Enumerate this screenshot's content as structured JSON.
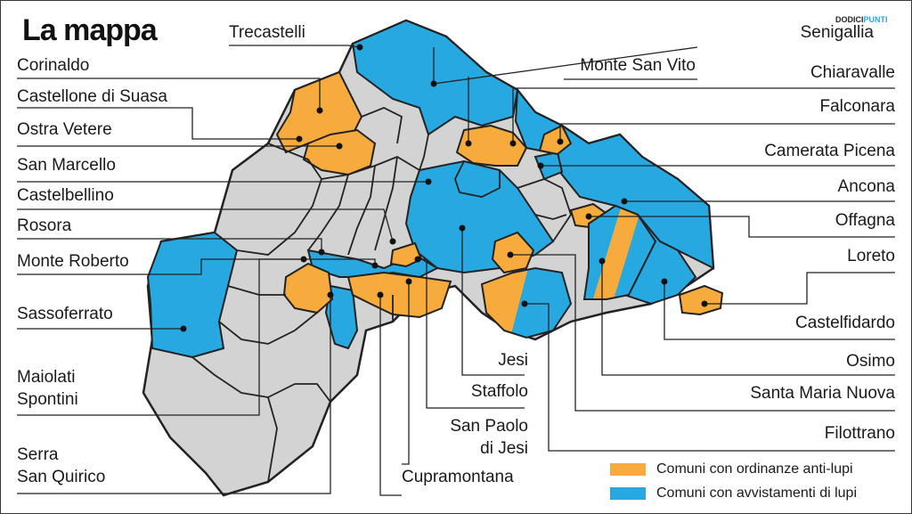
{
  "title": "La mappa",
  "brand": {
    "part1": "DODICI",
    "part2": "PUNTI"
  },
  "colors": {
    "orange": "#f7ab3d",
    "blue": "#28a8e0",
    "gray": "#d3d3d3",
    "border": "#222222",
    "brand_accent": "#2aa7e1"
  },
  "labels_left": {
    "trecastelli": "Trecastelli",
    "corinaldo": "Corinaldo",
    "castellone": "Castellone di Suasa",
    "ostra_vetere": "Ostra Vetere",
    "san_marcello": "San Marcello",
    "castelbellino": "Castelbellino",
    "rosora": "Rosora",
    "monte_roberto": "Monte Roberto",
    "sassoferrato": "Sassoferrato",
    "maiolati_1": "Maiolati",
    "maiolati_2": "Spontini",
    "serra_1": "Serra",
    "serra_2": "San Quirico"
  },
  "labels_right": {
    "senigallia": "Senigallia",
    "monte_san_vito": "Monte San Vito",
    "chiaravalle": "Chiaravalle",
    "falconara": "Falconara",
    "camerata": "Camerata Picena",
    "ancona": "Ancona",
    "offagna": "Offagna",
    "loreto": "Loreto",
    "castelfidardo": "Castelfidardo",
    "osimo": "Osimo",
    "santa_maria_nuova": "Santa Maria Nuova",
    "filottrano": "Filottrano"
  },
  "labels_center": {
    "jesi": "Jesi",
    "staffolo": "Staffolo",
    "san_paolo_1": "San Paolo",
    "san_paolo_2": "di Jesi",
    "cupramontana": "Cupramontana"
  },
  "legend": [
    {
      "label": "Comuni con ordinanze anti-lupi",
      "color": "#f7ab3d"
    },
    {
      "label": "Comuni con avvistamenti di lupi",
      "color": "#28a8e0"
    }
  ]
}
